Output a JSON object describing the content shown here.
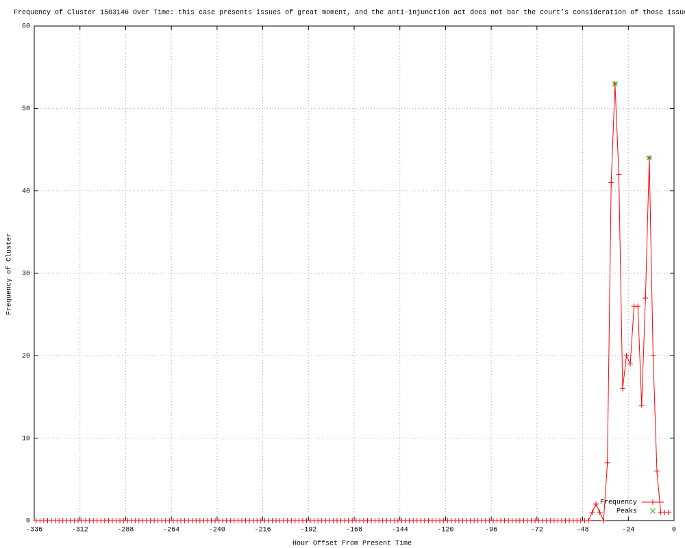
{
  "chart_data": {
    "type": "line",
    "title": "Frequency of Cluster 1503146 Over Time: this case presents issues of great moment, and the anti-injunction act does not bar the court’s consideration of those issue",
    "x_label": "Hour Offset From Present Time",
    "y_label": "Frequency of Cluster",
    "xlim": [
      -336,
      0
    ],
    "ylim": [
      0,
      60
    ],
    "xticks": [
      -336,
      -312,
      -288,
      -264,
      -240,
      -216,
      -192,
      -168,
      -144,
      -120,
      -96,
      -72,
      -48,
      -24,
      0
    ],
    "yticks": [
      0,
      10,
      20,
      30,
      40,
      50,
      60
    ],
    "grid": true,
    "legend": "bottom-right",
    "series": [
      {
        "name": "Frequency",
        "color": "#ff0000",
        "x": [
          -335,
          -333,
          -331,
          -329,
          -327,
          -325,
          -323,
          -321,
          -319,
          -317,
          -315,
          -313,
          -311,
          -309,
          -307,
          -305,
          -303,
          -301,
          -299,
          -297,
          -295,
          -293,
          -291,
          -289,
          -287,
          -285,
          -283,
          -281,
          -279,
          -277,
          -275,
          -273,
          -271,
          -269,
          -267,
          -265,
          -263,
          -261,
          -259,
          -257,
          -255,
          -253,
          -251,
          -249,
          -247,
          -245,
          -243,
          -241,
          -239,
          -237,
          -235,
          -233,
          -231,
          -229,
          -227,
          -225,
          -223,
          -221,
          -219,
          -217,
          -215,
          -213,
          -211,
          -209,
          -207,
          -205,
          -203,
          -201,
          -199,
          -197,
          -195,
          -193,
          -191,
          -189,
          -187,
          -185,
          -183,
          -181,
          -179,
          -177,
          -175,
          -173,
          -171,
          -169,
          -167,
          -165,
          -163,
          -161,
          -159,
          -157,
          -155,
          -153,
          -151,
          -149,
          -147,
          -145,
          -143,
          -141,
          -139,
          -137,
          -135,
          -133,
          -131,
          -129,
          -127,
          -125,
          -123,
          -121,
          -119,
          -117,
          -115,
          -113,
          -111,
          -109,
          -107,
          -105,
          -103,
          -101,
          -99,
          -97,
          -95,
          -93,
          -91,
          -89,
          -87,
          -85,
          -83,
          -81,
          -79,
          -77,
          -75,
          -73,
          -71,
          -69,
          -67,
          -65,
          -63,
          -61,
          -59,
          -57,
          -55,
          -53,
          -51,
          -49,
          -47,
          -45,
          -43,
          -41,
          -39,
          -37,
          -35,
          -33,
          -31,
          -29,
          -27,
          -25,
          -23,
          -21,
          -19,
          -17,
          -15,
          -13,
          -11,
          -9,
          -7,
          -5,
          -3
        ],
        "values": [
          0,
          0,
          0,
          0,
          0,
          0,
          0,
          0,
          0,
          0,
          0,
          0,
          0,
          0,
          0,
          0,
          0,
          0,
          0,
          0,
          0,
          0,
          0,
          0,
          0,
          0,
          0,
          0,
          0,
          0,
          0,
          0,
          0,
          0,
          0,
          0,
          0,
          0,
          0,
          0,
          0,
          0,
          0,
          0,
          0,
          0,
          0,
          0,
          0,
          0,
          0,
          0,
          0,
          0,
          0,
          0,
          0,
          0,
          0,
          0,
          0,
          0,
          0,
          0,
          0,
          0,
          0,
          0,
          0,
          0,
          0,
          0,
          0,
          0,
          0,
          0,
          0,
          0,
          0,
          0,
          0,
          0,
          0,
          0,
          0,
          0,
          0,
          0,
          0,
          0,
          0,
          0,
          0,
          0,
          0,
          0,
          0,
          0,
          0,
          0,
          0,
          0,
          0,
          0,
          0,
          0,
          0,
          0,
          0,
          0,
          0,
          0,
          0,
          0,
          0,
          0,
          0,
          0,
          0,
          0,
          0,
          0,
          0,
          0,
          0,
          0,
          0,
          0,
          0,
          0,
          0,
          0,
          0,
          0,
          0,
          0,
          0,
          0,
          0,
          0,
          0,
          0,
          0,
          0,
          0,
          0,
          1,
          2,
          1,
          0,
          7,
          41,
          53,
          42,
          16,
          20,
          19,
          26,
          26,
          14,
          27,
          44,
          20,
          6,
          1,
          1,
          1
        ]
      },
      {
        "name": "Peaks",
        "color": "#00c000",
        "x": [
          -31,
          -13
        ],
        "values": [
          53,
          44
        ]
      }
    ]
  }
}
